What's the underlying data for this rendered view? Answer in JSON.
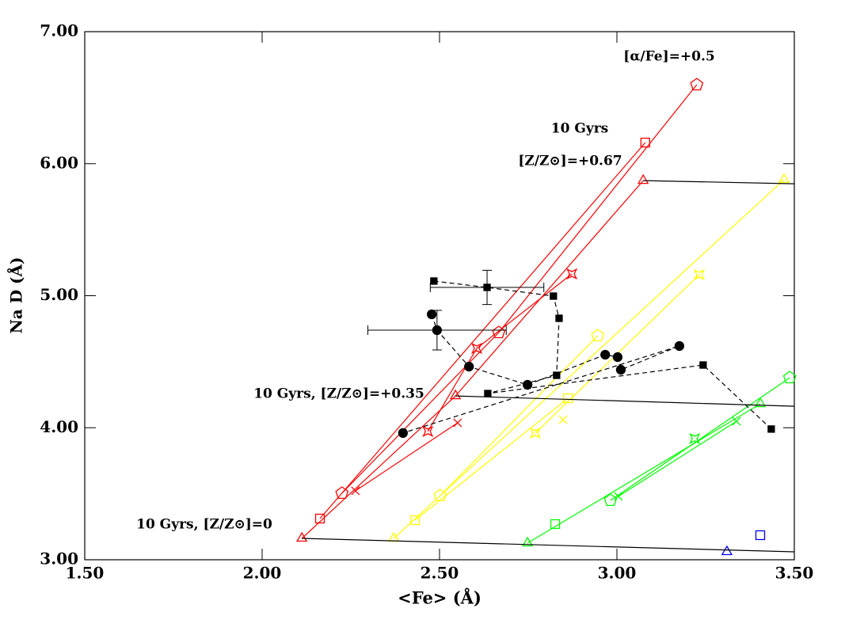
{
  "chart_data": {
    "type": "line",
    "x_label": "<Fe> (Å)",
    "y_label": "Na D (Å)",
    "xlim": [
      1.5,
      3.5
    ],
    "ylim": [
      3.0,
      7.0
    ],
    "xticks": [
      {
        "value": 1.5,
        "label": "1.50"
      },
      {
        "value": 2.0,
        "label": "2.00"
      },
      {
        "value": 2.5,
        "label": "2.50"
      },
      {
        "value": 3.0,
        "label": "3.00"
      },
      {
        "value": 3.5,
        "label": "3.50"
      }
    ],
    "yticks": [
      {
        "value": 3.0,
        "label": "3.00"
      },
      {
        "value": 4.0,
        "label": "4.00"
      },
      {
        "value": 5.0,
        "label": "5.00"
      },
      {
        "value": 6.0,
        "label": "6.00"
      },
      {
        "value": 7.0,
        "label": "7.00"
      }
    ],
    "annotations": [
      "[α/Fe]=+0.5",
      "10 Gyrs",
      "[Z/Z⊙]=+0.67",
      "10 Gyrs, [Z/Z⊙]=+0.35",
      "10 Gyrs, [Z/Z⊙]=0"
    ],
    "series": [
      {
        "color": "#ff0000",
        "marker": "pentagon",
        "x": [
          2.225,
          2.667,
          3.225
        ],
        "values": [
          3.504,
          4.721,
          6.598
        ]
      },
      {
        "color": "#ff0000",
        "marker": "square",
        "x": [
          2.163,
          3.08
        ],
        "values": [
          3.312,
          6.16
        ]
      },
      {
        "color": "#ff0000",
        "marker": "triangle",
        "x": [
          2.112,
          2.545,
          3.074
        ],
        "values": [
          3.162,
          4.241,
          5.872
        ]
      },
      {
        "color": "#ff0000",
        "marker": "star",
        "x": [
          2.467,
          2.605,
          2.873
        ],
        "values": [
          3.972,
          4.601,
          5.165
        ]
      },
      {
        "color": "#ff0000",
        "marker": "cross",
        "x": [
          2.263,
          2.551
        ],
        "values": [
          3.522,
          4.037
        ]
      },
      {
        "color": "#ffff00",
        "marker": "pentagon",
        "x": [
          2.502,
          2.946
        ],
        "values": [
          3.486,
          4.697
        ]
      },
      {
        "color": "#ffff00",
        "marker": "square",
        "x": [
          2.431,
          2.862
        ],
        "values": [
          3.3,
          4.223
        ]
      },
      {
        "color": "#ffff00",
        "marker": "triangle",
        "x": [
          2.371,
          3.471
        ],
        "values": [
          3.162,
          5.879
        ]
      },
      {
        "color": "#ffff00",
        "marker": "star",
        "x": [
          2.77,
          3.232
        ],
        "values": [
          3.96,
          5.159
        ]
      },
      {
        "color": "#ffff00",
        "marker": "cross",
        "x": [
          2.848
        ],
        "values": [
          4.061
        ]
      },
      {
        "color": "#00ff00",
        "marker": "pentagon",
        "x": [
          2.982,
          3.487
        ],
        "values": [
          3.45,
          4.379
        ]
      },
      {
        "color": "#00ff00",
        "marker": "square",
        "x": [
          2.826
        ],
        "values": [
          3.27
        ]
      },
      {
        "color": "#00ff00",
        "marker": "triangle",
        "x": [
          2.748,
          3.404
        ],
        "values": [
          3.126,
          4.181
        ]
      },
      {
        "color": "#00ff00",
        "marker": "star",
        "x": [
          3.219
        ],
        "values": [
          3.918
        ]
      },
      {
        "color": "#00ff00",
        "marker": "cross",
        "x": [
          3.004,
          3.337
        ],
        "values": [
          3.48,
          4.049
        ]
      },
      {
        "color": "#0000ff",
        "marker": "triangle",
        "x": [
          3.31
        ],
        "values": [
          3.06
        ]
      },
      {
        "color": "#0000ff",
        "marker": "square",
        "x": [
          3.404
        ],
        "values": [
          3.186
        ]
      },
      {
        "color": "#000000",
        "marker": "none",
        "x": [
          2.112,
          3.5
        ],
        "values": [
          3.162,
          3.06
        ]
      },
      {
        "color": "#000000",
        "marker": "none",
        "x": [
          2.545,
          3.5
        ],
        "values": [
          4.241,
          4.163
        ]
      },
      {
        "color": "#000000",
        "marker": "none",
        "x": [
          3.074,
          3.5
        ],
        "values": [
          5.872,
          5.848
        ]
      },
      {
        "color": "#000000",
        "marker": "filled-square",
        "dashed": true,
        "x": [
          2.484,
          2.634,
          2.821,
          2.837,
          2.83,
          2.636,
          3.243,
          3.435
        ],
        "values": [
          5.111,
          5.063,
          4.997,
          4.829,
          4.397,
          4.259,
          4.475,
          3.99
        ],
        "xerr": [
          null,
          0.16,
          null,
          null,
          null,
          null,
          null,
          null
        ],
        "yerr": [
          null,
          0.13,
          null,
          null,
          null,
          null,
          null,
          null
        ]
      },
      {
        "color": "#000000",
        "marker": "filled-circle",
        "dashed": true,
        "x": [
          2.478,
          2.493,
          2.583,
          2.748,
          2.967,
          3.002,
          3.011,
          3.176,
          2.397
        ],
        "values": [
          4.859,
          4.739,
          4.463,
          4.325,
          4.553,
          4.535,
          4.439,
          4.619,
          3.96
        ],
        "xerr": [
          null,
          0.195,
          null,
          null,
          null,
          null,
          null,
          null,
          null
        ],
        "yerr": [
          null,
          0.15,
          null,
          null,
          null,
          null,
          null,
          null,
          null
        ]
      }
    ]
  }
}
